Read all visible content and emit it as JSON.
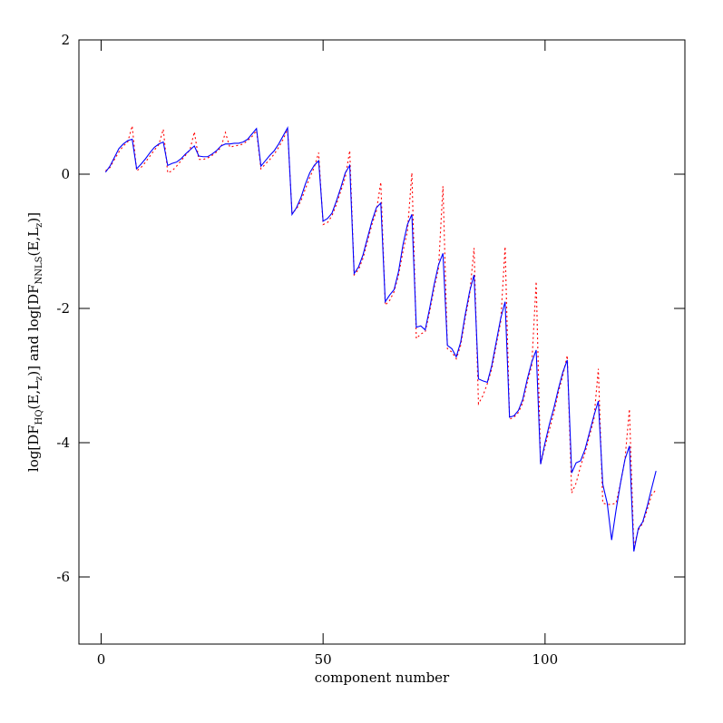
{
  "chart_data": {
    "type": "line",
    "xlabel": "component number",
    "ylabel_parts": [
      "log[DF",
      "HQ",
      "(E,L",
      "z",
      ")] and log[DF",
      "NNLS",
      "(E,L",
      "z",
      ")]"
    ],
    "xlim": [
      -5,
      131.5
    ],
    "ylim": [
      -7,
      2
    ],
    "xticks": [
      0,
      50,
      100
    ],
    "yticks": [
      -6,
      -4,
      -2,
      0,
      2
    ],
    "x": [
      1,
      2,
      3,
      4,
      5,
      6,
      7,
      8,
      9,
      10,
      11,
      12,
      13,
      14,
      15,
      16,
      17,
      18,
      19,
      20,
      21,
      22,
      23,
      24,
      25,
      26,
      27,
      28,
      29,
      30,
      31,
      32,
      33,
      34,
      35,
      36,
      37,
      38,
      39,
      40,
      41,
      42,
      43,
      44,
      45,
      46,
      47,
      48,
      49,
      50,
      51,
      52,
      53,
      54,
      55,
      56,
      57,
      58,
      59,
      60,
      61,
      62,
      63,
      64,
      65,
      66,
      67,
      68,
      69,
      70,
      71,
      72,
      73,
      74,
      75,
      76,
      77,
      78,
      79,
      80,
      81,
      82,
      83,
      84,
      85,
      86,
      87,
      88,
      89,
      90,
      91,
      92,
      93,
      94,
      95,
      96,
      97,
      98,
      99,
      100,
      101,
      102,
      103,
      104,
      105,
      106,
      107,
      108,
      109,
      110,
      111,
      112,
      113,
      114,
      115,
      116,
      117,
      118,
      119,
      120,
      121,
      122,
      123,
      124,
      125
    ],
    "series": [
      {
        "color": "#ff0000",
        "linestyle": "dotted",
        "values": [
          0.05,
          0.1,
          0.22,
          0.33,
          0.42,
          0.48,
          0.72,
          0.05,
          0.1,
          0.18,
          0.27,
          0.36,
          0.44,
          0.67,
          0.02,
          0.05,
          0.12,
          0.2,
          0.28,
          0.36,
          0.63,
          0.22,
          0.22,
          0.24,
          0.28,
          0.33,
          0.4,
          0.62,
          0.4,
          0.42,
          0.43,
          0.45,
          0.5,
          0.56,
          0.65,
          0.08,
          0.15,
          0.22,
          0.3,
          0.4,
          0.52,
          0.67,
          -0.58,
          -0.52,
          -0.4,
          -0.22,
          -0.05,
          0.1,
          0.32,
          -0.75,
          -0.72,
          -0.62,
          -0.45,
          -0.25,
          -0.05,
          0.35,
          -1.5,
          -1.42,
          -1.25,
          -1.0,
          -0.75,
          -0.55,
          -0.12,
          -1.95,
          -1.88,
          -1.75,
          -1.5,
          -1.15,
          -0.85,
          0.02,
          -2.45,
          -2.38,
          -2.35,
          -2.05,
          -1.7,
          -1.4,
          -0.18,
          -2.6,
          -2.65,
          -2.75,
          -2.55,
          -2.15,
          -1.8,
          -1.1,
          -3.42,
          -3.3,
          -3.12,
          -2.9,
          -2.55,
          -2.2,
          -1.08,
          -3.65,
          -3.62,
          -3.55,
          -3.4,
          -3.1,
          -2.85,
          -1.6,
          -4.32,
          -4.05,
          -3.8,
          -3.55,
          -3.25,
          -3.0,
          -2.7,
          -4.75,
          -4.6,
          -4.35,
          -4.15,
          -3.9,
          -3.65,
          -2.9,
          -4.9,
          -4.92,
          -4.92,
          -4.9,
          -4.6,
          -4.25,
          -3.5,
          -5.55,
          -5.3,
          -5.2,
          -5.0,
          -4.78,
          -4.7
        ]
      },
      {
        "color": "#0000ff",
        "linestyle": "solid",
        "values": [
          0.03,
          0.12,
          0.25,
          0.38,
          0.45,
          0.5,
          0.52,
          0.08,
          0.15,
          0.23,
          0.32,
          0.4,
          0.45,
          0.48,
          0.13,
          0.16,
          0.18,
          0.23,
          0.3,
          0.36,
          0.42,
          0.27,
          0.26,
          0.26,
          0.3,
          0.35,
          0.42,
          0.45,
          0.45,
          0.46,
          0.46,
          0.48,
          0.52,
          0.6,
          0.68,
          0.12,
          0.2,
          0.28,
          0.35,
          0.45,
          0.57,
          0.69,
          -0.6,
          -0.5,
          -0.35,
          -0.15,
          0.02,
          0.13,
          0.2,
          -0.7,
          -0.66,
          -0.58,
          -0.4,
          -0.2,
          0.02,
          0.13,
          -1.48,
          -1.38,
          -1.2,
          -0.95,
          -0.7,
          -0.5,
          -0.43,
          -1.9,
          -1.8,
          -1.72,
          -1.45,
          -1.05,
          -0.75,
          -0.6,
          -2.28,
          -2.26,
          -2.32,
          -2.0,
          -1.65,
          -1.35,
          -1.18,
          -2.55,
          -2.6,
          -2.72,
          -2.5,
          -2.1,
          -1.75,
          -1.5,
          -3.05,
          -3.08,
          -3.1,
          -2.85,
          -2.5,
          -2.15,
          -1.9,
          -3.62,
          -3.6,
          -3.52,
          -3.35,
          -3.05,
          -2.8,
          -2.62,
          -4.32,
          -4.0,
          -3.72,
          -3.48,
          -3.2,
          -2.95,
          -2.77,
          -4.45,
          -4.3,
          -4.27,
          -4.1,
          -3.85,
          -3.6,
          -3.38,
          -4.62,
          -4.9,
          -5.45,
          -5.0,
          -4.6,
          -4.25,
          -4.05,
          -5.62,
          -5.28,
          -5.18,
          -4.95,
          -4.68,
          -4.42
        ]
      }
    ]
  }
}
